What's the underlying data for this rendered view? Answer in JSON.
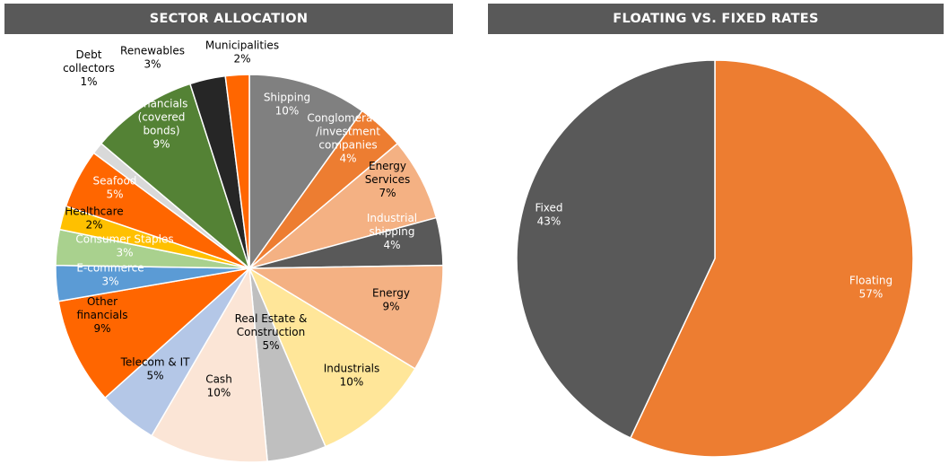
{
  "chart_data": [
    {
      "type": "pie",
      "title": "SECTOR ALLOCATION",
      "slices": [
        {
          "lines": [
            "Shipping"
          ],
          "value": 10,
          "pct": "10%",
          "color": "#808080",
          "text_color": "#ffffff"
        },
        {
          "lines": [
            "Conglomerates",
            "/investment",
            "companies"
          ],
          "value": 4,
          "pct": "4%",
          "color": "#ed7d31",
          "text_color": "#ffffff"
        },
        {
          "lines": [
            "Energy",
            "Services"
          ],
          "value": 7,
          "pct": "7%",
          "color": "#f4b183",
          "text_color": "#000000"
        },
        {
          "lines": [
            "Industrial",
            "shipping"
          ],
          "value": 4,
          "pct": "4%",
          "color": "#595959",
          "text_color": "#ffffff"
        },
        {
          "lines": [
            "Energy"
          ],
          "value": 9,
          "pct": "9%",
          "color": "#f4b183",
          "text_color": "#000000"
        },
        {
          "lines": [
            "Industrials"
          ],
          "value": 10,
          "pct": "10%",
          "color": "#ffe699",
          "text_color": "#000000"
        },
        {
          "lines": [
            "Real Estate &",
            "Construction"
          ],
          "value": 5,
          "pct": "5%",
          "color": "#bfbfbf",
          "text_color": "#000000"
        },
        {
          "lines": [
            "Cash"
          ],
          "value": 10,
          "pct": "10%",
          "color": "#fbe5d6",
          "text_color": "#000000"
        },
        {
          "lines": [
            "Telecom & IT"
          ],
          "value": 5,
          "pct": "5%",
          "color": "#b4c7e7",
          "text_color": "#000000"
        },
        {
          "lines": [
            "Other",
            "financials"
          ],
          "value": 9,
          "pct": "9%",
          "color": "#ff6600",
          "text_color": "#000000"
        },
        {
          "lines": [
            "E-commerce"
          ],
          "value": 3,
          "pct": "3%",
          "color": "#5b9bd5",
          "text_color": "#ffffff"
        },
        {
          "lines": [
            "Consumer Staples"
          ],
          "value": 3,
          "pct": "3%",
          "color": "#a9d18e",
          "text_color": "#ffffff"
        },
        {
          "lines": [
            "Healthcare"
          ],
          "value": 2,
          "pct": "2%",
          "color": "#ffc000",
          "text_color": "#000000"
        },
        {
          "lines": [
            "Seafood"
          ],
          "value": 5,
          "pct": "5%",
          "color": "#ff6600",
          "text_color": "#ffffff"
        },
        {
          "lines": [
            "Debt",
            "collectors"
          ],
          "value": 1,
          "pct": "1%",
          "color": "#d9d9d9",
          "text_color": "#000000"
        },
        {
          "lines": [
            "Financials",
            "(covered",
            "bonds)"
          ],
          "value": 9,
          "pct": "9%",
          "color": "#548235",
          "text_color": "#ffffff"
        },
        {
          "lines": [
            "Renewables"
          ],
          "value": 3,
          "pct": "3%",
          "color": "#262626",
          "text_color": "#000000"
        },
        {
          "lines": [
            "Municipalities"
          ],
          "value": 2,
          "pct": "2%",
          "color": "#ff6600",
          "text_color": "#000000"
        }
      ]
    },
    {
      "type": "pie",
      "title": "FLOATING VS. FIXED RATES",
      "slices": [
        {
          "lines": [
            "Floating"
          ],
          "value": 57,
          "pct": "57%",
          "color": "#ed7d31",
          "text_color": "#ffffff"
        },
        {
          "lines": [
            "Fixed"
          ],
          "value": 43,
          "pct": "43%",
          "color": "#595959",
          "text_color": "#ffffff"
        }
      ]
    }
  ]
}
